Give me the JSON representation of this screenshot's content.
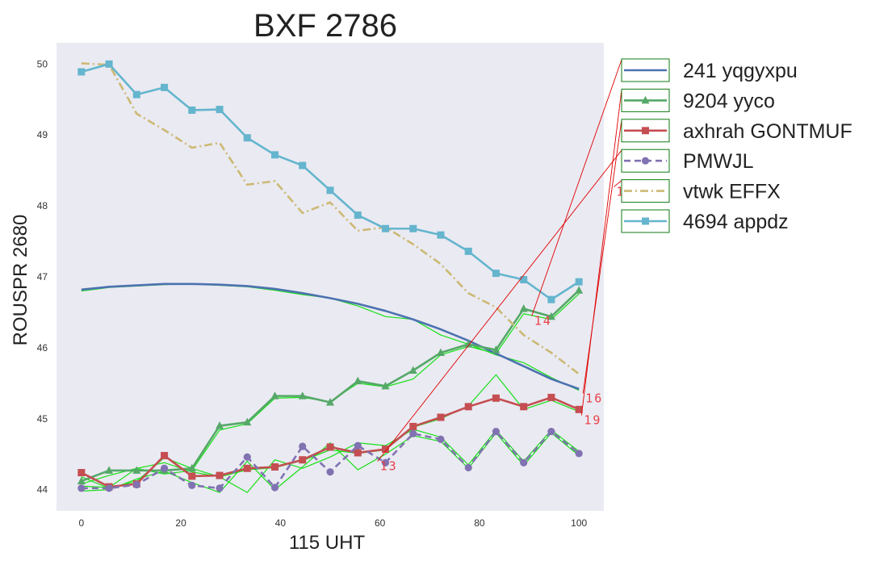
{
  "chart_data": {
    "type": "line",
    "title": "BXF 2786",
    "xlabel": "115 UHT",
    "ylabel": "ROUSPR 2680",
    "xlim": [
      -5,
      105
    ],
    "ylim": [
      43.7,
      50.3
    ],
    "xticks": [
      0,
      20,
      40,
      60,
      80,
      100
    ],
    "yticks": [
      44,
      45,
      46,
      47,
      48,
      49,
      50
    ],
    "grid": false,
    "legend": "right-outside",
    "x": [
      0,
      5.56,
      11.11,
      16.67,
      22.22,
      27.78,
      33.33,
      38.89,
      44.44,
      50,
      55.56,
      61.11,
      66.67,
      72.22,
      77.78,
      83.33,
      88.89,
      94.44,
      100
    ],
    "series": [
      {
        "name": "241 yqgyxpu",
        "color": "#4c72b0",
        "style": "solid",
        "marker": "none",
        "values": [
          46.82,
          46.86,
          46.88,
          46.9,
          46.9,
          46.89,
          46.87,
          46.83,
          46.77,
          46.7,
          46.62,
          46.52,
          46.4,
          46.26,
          46.1,
          45.92,
          45.74,
          45.56,
          45.42
        ]
      },
      {
        "name": "9204 yyco",
        "color": "#55a868",
        "style": "solid",
        "marker": "triangle",
        "values": [
          44.12,
          44.27,
          44.27,
          44.27,
          44.3,
          44.9,
          44.95,
          45.32,
          45.32,
          45.23,
          45.53,
          45.46,
          45.68,
          45.93,
          46.05,
          45.97,
          46.55,
          46.44,
          46.81
        ]
      },
      {
        "name": "axhrah GONTMUF",
        "color": "#c44e52",
        "style": "solid",
        "marker": "square",
        "values": [
          44.24,
          44.04,
          44.08,
          44.48,
          44.19,
          44.2,
          44.3,
          44.32,
          44.42,
          44.6,
          44.52,
          44.57,
          44.89,
          45.02,
          45.17,
          45.29,
          45.17,
          45.3,
          45.13
        ]
      },
      {
        "name": "PMWJL",
        "color": "#8172b2",
        "style": "dashed",
        "marker": "circle",
        "values": [
          44.02,
          44.02,
          44.07,
          44.3,
          44.06,
          44.02,
          44.46,
          44.03,
          44.61,
          44.25,
          44.62,
          44.38,
          44.79,
          44.71,
          44.31,
          44.82,
          44.38,
          44.82,
          44.51
        ]
      },
      {
        "name": "vtwk EFFX",
        "color": "#ccb974",
        "style": "dashdot",
        "marker": "none",
        "values": [
          50.01,
          49.99,
          49.3,
          49.07,
          48.82,
          48.89,
          48.3,
          48.35,
          47.9,
          48.05,
          47.65,
          47.7,
          47.46,
          47.18,
          46.77,
          46.57,
          46.18,
          45.93,
          45.63
        ]
      },
      {
        "name": "4694 appdz",
        "color": "#64b5cd",
        "style": "solid",
        "marker": "square",
        "values": [
          49.89,
          50.0,
          49.57,
          49.67,
          49.35,
          49.36,
          48.96,
          48.72,
          48.57,
          48.22,
          47.87,
          47.68,
          47.68,
          47.59,
          47.36,
          47.05,
          46.96,
          46.68,
          46.93
        ]
      }
    ],
    "overlay_traces": [
      {
        "series": "241 yqgyxpu",
        "values": [
          46.8,
          46.85,
          46.87,
          46.89,
          46.9,
          46.88,
          46.86,
          46.81,
          46.75,
          46.7,
          46.59,
          46.44,
          46.4,
          46.18,
          46.05,
          45.9,
          45.79,
          45.58,
          45.4
        ]
      },
      {
        "series": "9204 yyco",
        "values": [
          44.08,
          44.2,
          44.3,
          44.22,
          44.27,
          44.84,
          44.93,
          45.29,
          45.3,
          45.24,
          45.5,
          45.45,
          45.56,
          45.9,
          46.02,
          45.92,
          46.48,
          46.4,
          46.76
        ]
      },
      {
        "series": "axhrah GONTMUF",
        "values": [
          44.18,
          44.02,
          44.12,
          44.45,
          44.3,
          44.18,
          44.28,
          44.31,
          44.41,
          44.56,
          44.51,
          44.56,
          44.88,
          45.0,
          45.18,
          45.62,
          45.13,
          45.26,
          45.1
        ]
      },
      {
        "series": "PMWJL",
        "values": [
          43.98,
          44.0,
          44.15,
          44.26,
          44.1,
          43.96,
          44.4,
          44.0,
          44.32,
          44.66,
          44.28,
          44.5,
          44.76,
          44.68,
          44.3,
          44.8,
          44.34,
          44.8,
          44.48
        ]
      },
      {
        "series": "PMWJL",
        "values": [
          44.05,
          44.03,
          44.3,
          44.38,
          44.25,
          44.18,
          43.96,
          44.42,
          44.3,
          44.46,
          44.66,
          44.62,
          44.85,
          44.74,
          44.35,
          44.84,
          44.4,
          44.84,
          44.54
        ]
      }
    ],
    "annotations": [
      {
        "text": "14",
        "x": 91.0,
        "y": 46.38,
        "target_legend_index": 0
      },
      {
        "text": "16",
        "x": 101.3,
        "y": 45.29,
        "target_legend_index": 2
      },
      {
        "text": "19",
        "x": 101.0,
        "y": 44.98,
        "target_legend_index": 1
      },
      {
        "text": "13",
        "x": 60.0,
        "y": 44.33,
        "target_legend_index": 3
      },
      {
        "text": "1",
        "x": 107.5,
        "y": 48.2,
        "target_legend_index": 4
      }
    ]
  }
}
